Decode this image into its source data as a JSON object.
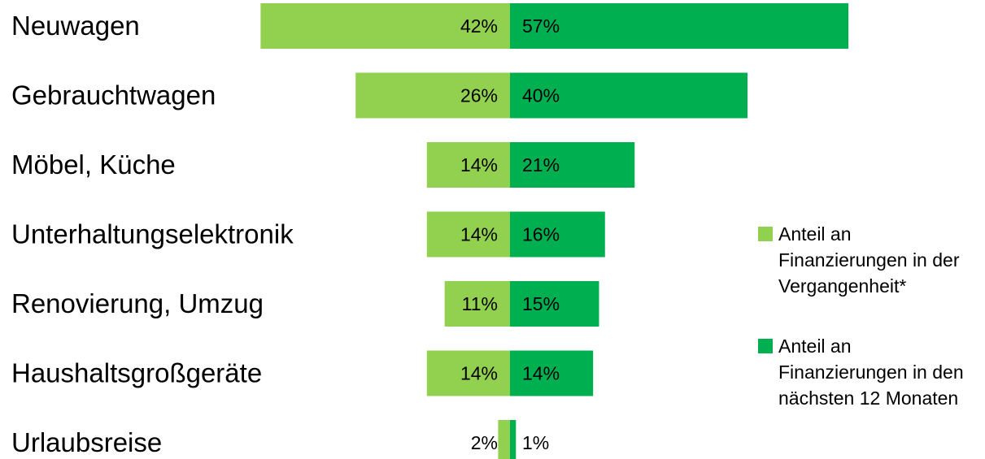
{
  "chart_data": {
    "type": "bar",
    "orientation": "horizontal-diverging",
    "categories": [
      "Neuwagen",
      "Gebrauchtwagen",
      "Möbel, Küche",
      "Unterhaltungselektronik",
      "Renovierung, Umzug",
      "Haushaltsgroßgeräte",
      "Urlaubsreise"
    ],
    "series": [
      {
        "name": "Anteil an Finanzierungen in der Vergangenheit*",
        "values": [
          42,
          26,
          14,
          14,
          11,
          14,
          2
        ],
        "labels": [
          "42%",
          "26%",
          "14%",
          "14%",
          "11%",
          "14%",
          "2%"
        ],
        "color": "#92D050",
        "direction": "left"
      },
      {
        "name": "Anteil an Finanzierungen in den nächsten 12 Monaten",
        "values": [
          57,
          40,
          21,
          16,
          15,
          14,
          1
        ],
        "labels": [
          "57%",
          "40%",
          "21%",
          "16%",
          "15%",
          "14%",
          "1%"
        ],
        "color": "#00B050",
        "direction": "right"
      }
    ],
    "legend_position": "right",
    "grid": false,
    "title": "",
    "xlabel": "",
    "ylabel": ""
  },
  "legend": {
    "past": {
      "label": "Anteil an Finanzierungen in der Vergangenheit*",
      "color": "#92D050"
    },
    "future": {
      "label": "Anteil an Finanzierungen in den nächsten 12 Monaten",
      "color": "#00B050"
    }
  }
}
